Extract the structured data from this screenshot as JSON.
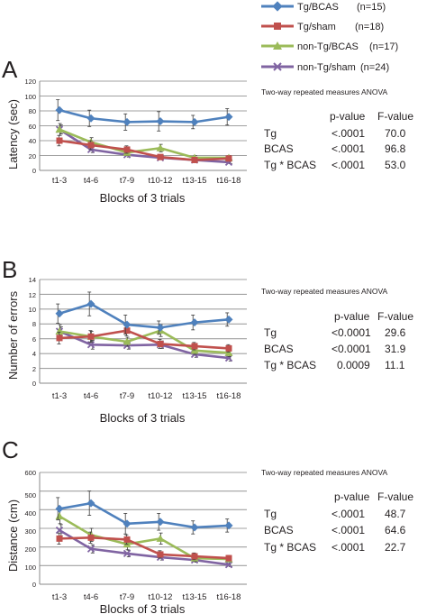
{
  "legend": {
    "entries": [
      {
        "label": "Tg/BCAS",
        "n": "(n=15)",
        "color": "#4f81bd",
        "marker": "diamond"
      },
      {
        "label": "Tg/sham",
        "n": "(n=18)",
        "color": "#c0504d",
        "marker": "square"
      },
      {
        "label": "non-Tg/BCAS",
        "n": "(n=17)",
        "color": "#9bbb59",
        "marker": "triangle"
      },
      {
        "label": "non-Tg/sham",
        "n": "(n=24)",
        "color": "#8064a2",
        "marker": "x"
      }
    ]
  },
  "chart_data": [
    {
      "type": "line",
      "panel": "A",
      "xlabel": "Blocks of 3 trials",
      "ylabel": "Latency (sec)",
      "ylim": [
        0,
        120
      ],
      "yticks": [
        "0",
        "20",
        "40",
        "60",
        "80",
        "100",
        "120"
      ],
      "grid": true,
      "categories": [
        "t1-3",
        "t4-6",
        "t7-9",
        "t10-12",
        "t13-15",
        "t16-18"
      ],
      "series": [
        {
          "name": "Tg/BCAS",
          "values": [
            81,
            70,
            65,
            66,
            65,
            72
          ],
          "errors": [
            14,
            11,
            11,
            13,
            9,
            11
          ]
        },
        {
          "name": "Tg/sham",
          "values": [
            40,
            34,
            28,
            18,
            14,
            16
          ],
          "errors": [
            7,
            6,
            5,
            3,
            3,
            3
          ]
        },
        {
          "name": "non-Tg/BCAS",
          "values": [
            55,
            38,
            24,
            30,
            17,
            17
          ],
          "errors": [
            8,
            6,
            4,
            5,
            3,
            3
          ]
        },
        {
          "name": "non-Tg/sham",
          "values": [
            55,
            28,
            21,
            17,
            14,
            11
          ],
          "errors": [
            6,
            4,
            3,
            2,
            2,
            2
          ]
        }
      ],
      "anova": {
        "title": "Two-way repeated measures ANOVA",
        "headers": [
          "p-value",
          "F-value"
        ],
        "rows": [
          {
            "term": "Tg",
            "p": "<.0001",
            "f": "70.0"
          },
          {
            "term": "BCAS",
            "p": "<.0001",
            "f": "96.8"
          },
          {
            "term": "Tg * BCAS",
            "p": "<.0001",
            "f": "53.0"
          }
        ]
      }
    },
    {
      "type": "line",
      "panel": "B",
      "xlabel": "Blocks of 3 trials",
      "ylabel": "Number of errors",
      "ylim": [
        0,
        14
      ],
      "yticks": [
        "0",
        "2",
        "4",
        "6",
        "8",
        "10",
        "12",
        "14"
      ],
      "grid": true,
      "categories": [
        "t1-3",
        "t4-6",
        "t7-9",
        "t10-12",
        "t13-15",
        "t16-18"
      ],
      "series": [
        {
          "name": "Tg/BCAS",
          "values": [
            9.4,
            10.7,
            7.9,
            7.5,
            8.2,
            8.6
          ],
          "errors": [
            1.3,
            1.6,
            1.3,
            0.9,
            1.0,
            0.9
          ]
        },
        {
          "name": "Tg/sham",
          "values": [
            6.1,
            6.3,
            7.1,
            5.3,
            5.0,
            4.7
          ],
          "errors": [
            0.8,
            0.8,
            0.7,
            0.6,
            0.5,
            0.5
          ]
        },
        {
          "name": "non-Tg/BCAS",
          "values": [
            7.0,
            6.3,
            5.6,
            7.1,
            4.4,
            4.1
          ],
          "errors": [
            0.9,
            0.7,
            0.6,
            0.8,
            0.5,
            0.5
          ]
        },
        {
          "name": "non-Tg/sham",
          "values": [
            7.0,
            5.2,
            5.1,
            5.2,
            3.9,
            3.4
          ],
          "errors": [
            0.6,
            0.6,
            0.5,
            0.5,
            0.4,
            0.4
          ]
        }
      ],
      "anova": {
        "title": "Two-way repeated measures ANOVA",
        "headers": [
          "p-value",
          "F-value"
        ],
        "rows": [
          {
            "term": "Tg",
            "p": "<0.0001",
            "f": "29.6"
          },
          {
            "term": "BCAS",
            "p": "<0.0001",
            "f": "31.9"
          },
          {
            "term": "Tg * BCAS",
            "p": "0.0009",
            "f": "11.1"
          }
        ]
      }
    },
    {
      "type": "line",
      "panel": "C",
      "xlabel": "Blocks of 3 trials",
      "ylabel": "Distance (cm)",
      "ylim": [
        0,
        600
      ],
      "yticks": [
        "0",
        "100",
        "200",
        "300",
        "400",
        "500",
        "600"
      ],
      "grid": true,
      "categories": [
        "t1-3",
        "t4-6",
        "t7-9",
        "t10-12",
        "t13-15",
        "t16-18"
      ],
      "series": [
        {
          "name": "Tg/BCAS",
          "values": [
            405,
            435,
            325,
            335,
            305,
            315
          ],
          "errors": [
            60,
            65,
            55,
            45,
            35,
            35
          ]
        },
        {
          "name": "Tg/sham",
          "values": [
            245,
            250,
            240,
            160,
            150,
            140
          ],
          "errors": [
            30,
            30,
            25,
            20,
            18,
            15
          ]
        },
        {
          "name": "non-Tg/BCAS",
          "values": [
            365,
            265,
            215,
            245,
            140,
            135
          ],
          "errors": [
            40,
            35,
            30,
            30,
            18,
            15
          ]
        },
        {
          "name": "non-Tg/sham",
          "values": [
            290,
            190,
            165,
            145,
            130,
            105
          ],
          "errors": [
            30,
            22,
            18,
            15,
            12,
            10
          ]
        }
      ],
      "anova": {
        "title": "Two-way repeated measures ANOVA",
        "headers": [
          "p-value",
          "F-value"
        ],
        "rows": [
          {
            "term": "Tg",
            "p": "<.0001",
            "f": "48.7"
          },
          {
            "term": "BCAS",
            "p": "<.0001",
            "f": "64.6"
          },
          {
            "term": "Tg * BCAS",
            "p": "<.0001",
            "f": "22.7"
          }
        ]
      }
    }
  ]
}
